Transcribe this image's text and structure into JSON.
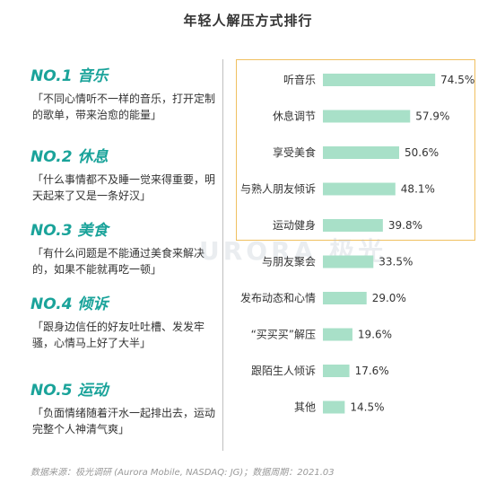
{
  "title": "年轻人解压方式排行",
  "rankings": [
    {
      "head": "NO.1 音乐",
      "quote": "「不同心情听不一样的音乐，打开定制的歌单，带来治愈的能量」"
    },
    {
      "head": "NO.2 休息",
      "quote": "「什么事情都不及睡一觉来得重要，明天起来了又是一条好汉」"
    },
    {
      "head": "NO.3 美食",
      "quote": "「有什么问题是不能通过美食来解决的，如果不能就再吃一顿」"
    },
    {
      "head": "NO.4 倾诉",
      "quote": "「跟身边信任的好友吐吐槽、发发牢骚，心情马上好了大半」"
    },
    {
      "head": "NO.5 运动",
      "quote": "「负面情绪随着汗水一起排出去，运动完整个人神清气爽」"
    }
  ],
  "watermark": "URORA 极光",
  "source": "数据来源：极光调研 (Aurora Mobile, NASDAQ: JG)；数据周期：2021.03",
  "colors": {
    "accent": "#1aa39a",
    "bar": "#a8e0c8",
    "highlight": "#f0c060"
  },
  "chart_data": {
    "type": "bar",
    "orientation": "horizontal",
    "categories": [
      "听音乐",
      "休息调节",
      "享受美食",
      "与熟人朋友倾诉",
      "运动健身",
      "与朋友聚会",
      "发布动态和心情",
      "“买买买”解压",
      "跟陌生人倾诉",
      "其他"
    ],
    "values": [
      74.5,
      57.9,
      50.6,
      48.1,
      39.8,
      33.5,
      29.0,
      19.6,
      17.6,
      14.5
    ],
    "labels": [
      "74.5%",
      "57.9%",
      "50.6%",
      "48.1%",
      "39.8%",
      "33.5%",
      "29.0%",
      "19.6%",
      "17.6%",
      "14.5%"
    ],
    "highlighted_top": 5,
    "xlim": [
      0,
      100
    ]
  }
}
